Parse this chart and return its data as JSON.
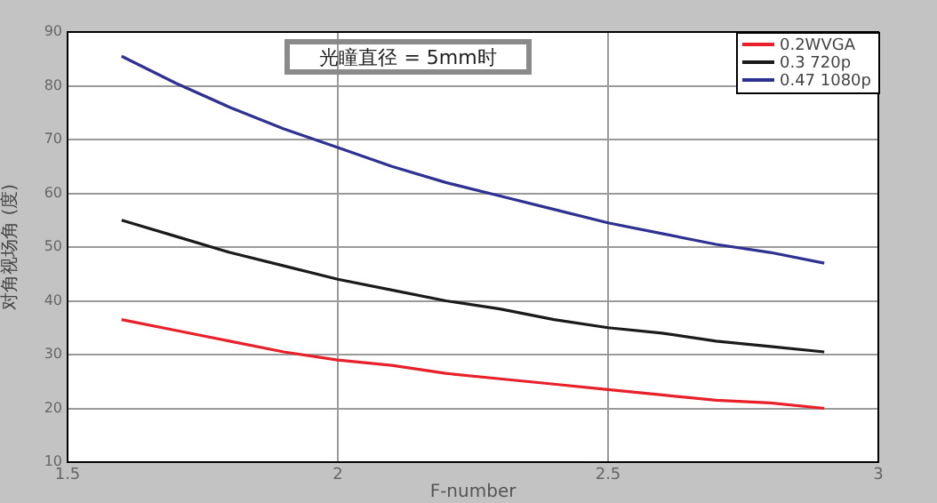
{
  "chart_data": {
    "type": "line",
    "xlabel": "F-number",
    "ylabel": "对角视场角 (度)",
    "annotations": [
      "光瞳直径 = 5mm时"
    ],
    "x": [
      1.6,
      1.7,
      1.8,
      1.9,
      2.0,
      2.1,
      2.2,
      2.3,
      2.4,
      2.5,
      2.6,
      2.7,
      2.8,
      2.9
    ],
    "series": [
      {
        "name": "0.2WVGA",
        "color": "#e8202a",
        "values": [
          36.5,
          34.5,
          32.5,
          30.5,
          29,
          28,
          26.5,
          25.5,
          24.5,
          23.5,
          22.5,
          21.5,
          21,
          20
        ]
      },
      {
        "name": "0.3 720p",
        "color": "#1a1a1a",
        "values": [
          55,
          52,
          49,
          46.5,
          44,
          42,
          40,
          38.5,
          36.5,
          35,
          34,
          32.5,
          31.5,
          30.5
        ]
      },
      {
        "name": "0.47 1080p",
        "color": "#2e3192",
        "values": [
          85.5,
          80.5,
          76,
          72,
          68.5,
          65,
          62,
          59.5,
          57,
          54.5,
          52.5,
          50.5,
          49,
          47
        ]
      }
    ],
    "xlim": [
      1.5,
      3
    ],
    "xticks": [
      1.5,
      2,
      2.5,
      3
    ],
    "ylim": [
      10,
      90
    ],
    "yticks": [
      10,
      20,
      30,
      40,
      50,
      60,
      70,
      80,
      90
    ],
    "grid": true,
    "legend": "top right",
    "marker": "none",
    "line_style": "solid"
  }
}
